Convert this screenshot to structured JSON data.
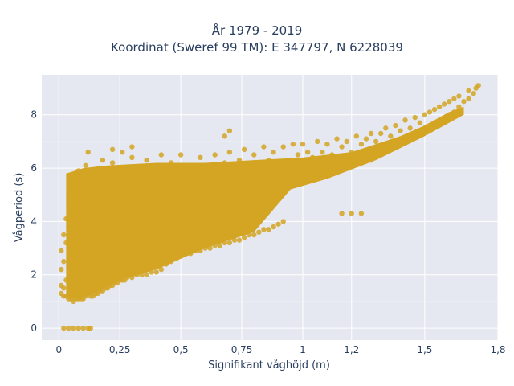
{
  "title": [
    "År 1979 - 2019",
    "Koordinat (Sweref 99 TM): E 347797, N 6228039"
  ],
  "xlabel": "Signifikant våghöjd (m)",
  "ylabel": "Vågperiod (s)",
  "colors": {
    "marker": "#d4a523",
    "plot_bg": "#e5e8f0",
    "grid": "#ffffff",
    "text": "#2a3f5f"
  },
  "chart_data": {
    "type": "scatter",
    "title": "År 1979 - 2019 / Koordinat (Sweref 99 TM): E 347797, N 6228039",
    "xlabel": "Signifikant våghöjd (m)",
    "ylabel": "Vågperiod (s)",
    "xlim": [
      -0.07,
      1.8
    ],
    "ylim": [
      -0.45,
      9.5
    ],
    "grid": true,
    "x_ticks": [
      {
        "value": 0,
        "label": "0"
      },
      {
        "value": 0.25,
        "label": "0,25"
      },
      {
        "value": 0.5,
        "label": "0,5"
      },
      {
        "value": 0.75,
        "label": "0,75"
      },
      {
        "value": 1,
        "label": "1"
      },
      {
        "value": 1.2,
        "label": "1,2"
      },
      {
        "value": 1.5,
        "label": "1,5"
      },
      {
        "value": 1.8,
        "label": "1,8"
      }
    ],
    "y_ticks": [
      {
        "value": 0,
        "label": "0"
      },
      {
        "value": 2,
        "label": "2"
      },
      {
        "value": 4,
        "label": "4"
      },
      {
        "value": 6,
        "label": "6"
      },
      {
        "value": 8,
        "label": "8"
      }
    ],
    "points": [
      [
        0.02,
        0
      ],
      [
        0.04,
        0
      ],
      [
        0.06,
        0
      ],
      [
        0.08,
        0
      ],
      [
        0.1,
        0
      ],
      [
        0.12,
        0
      ],
      [
        0.13,
        0
      ],
      [
        0.01,
        1.3
      ],
      [
        0.01,
        1.6
      ],
      [
        0.01,
        2.2
      ],
      [
        0.01,
        2.9
      ],
      [
        0.02,
        1.2
      ],
      [
        0.02,
        1.5
      ],
      [
        0.02,
        2.5
      ],
      [
        0.02,
        3.5
      ],
      [
        0.03,
        1.2
      ],
      [
        0.03,
        1.8
      ],
      [
        0.03,
        3.2
      ],
      [
        0.03,
        4.1
      ],
      [
        0.04,
        1.1
      ],
      [
        0.04,
        2.3
      ],
      [
        0.04,
        3.8
      ],
      [
        0.04,
        4.8
      ],
      [
        0.05,
        1.1
      ],
      [
        0.05,
        2.0
      ],
      [
        0.05,
        3.0
      ],
      [
        0.05,
        4.5
      ],
      [
        0.06,
        1.0
      ],
      [
        0.06,
        2.6
      ],
      [
        0.06,
        3.6
      ],
      [
        0.06,
        5.2
      ],
      [
        0.07,
        1.1
      ],
      [
        0.07,
        1.9
      ],
      [
        0.07,
        3.3
      ],
      [
        0.07,
        5.6
      ],
      [
        0.08,
        1.1
      ],
      [
        0.08,
        2.4
      ],
      [
        0.08,
        4.0
      ],
      [
        0.08,
        5.9
      ],
      [
        0.09,
        1.1
      ],
      [
        0.09,
        2.1
      ],
      [
        0.09,
        3.4
      ],
      [
        0.09,
        4.7
      ],
      [
        0.1,
        1.1
      ],
      [
        0.1,
        2.8
      ],
      [
        0.1,
        4.3
      ],
      [
        0.1,
        5.7
      ],
      [
        0.11,
        6.1
      ],
      [
        0.11,
        1.2
      ],
      [
        0.12,
        2.2
      ],
      [
        0.12,
        3.9
      ],
      [
        0.12,
        5.1
      ],
      [
        0.13,
        1.2
      ],
      [
        0.13,
        3.0
      ],
      [
        0.13,
        4.6
      ],
      [
        0.14,
        1.2
      ],
      [
        0.14,
        2.5
      ],
      [
        0.14,
        3.7
      ],
      [
        0.14,
        5.4
      ],
      [
        0.15,
        1.3
      ],
      [
        0.15,
        2.0
      ],
      [
        0.15,
        4.2
      ],
      [
        0.15,
        5.8
      ],
      [
        0.16,
        1.3
      ],
      [
        0.16,
        3.1
      ],
      [
        0.16,
        6.0
      ],
      [
        0.17,
        1.4
      ],
      [
        0.17,
        2.6
      ],
      [
        0.17,
        4.4
      ],
      [
        0.17,
        5.3
      ],
      [
        0.18,
        1.4
      ],
      [
        0.18,
        3.5
      ],
      [
        0.18,
        6.3
      ],
      [
        0.19,
        1.5
      ],
      [
        0.19,
        2.3
      ],
      [
        0.19,
        4.8
      ],
      [
        0.2,
        1.5
      ],
      [
        0.2,
        3.2
      ],
      [
        0.2,
        5.5
      ],
      [
        0.21,
        1.6
      ],
      [
        0.21,
        2.9
      ],
      [
        0.21,
        4.1
      ],
      [
        0.22,
        1.6
      ],
      [
        0.22,
        3.8
      ],
      [
        0.22,
        6.2
      ],
      [
        0.23,
        1.7
      ],
      [
        0.23,
        2.4
      ],
      [
        0.23,
        5.0
      ],
      [
        0.24,
        1.7
      ],
      [
        0.24,
        3.3
      ],
      [
        0.24,
        4.6
      ],
      [
        0.25,
        1.8
      ],
      [
        0.25,
        2.8
      ],
      [
        0.25,
        5.7
      ],
      [
        0.26,
        1.8
      ],
      [
        0.26,
        3.6
      ],
      [
        0.26,
        6.6
      ],
      [
        0.27,
        1.8
      ],
      [
        0.27,
        4.2
      ],
      [
        0.28,
        1.9
      ],
      [
        0.28,
        2.7
      ],
      [
        0.28,
        5.2
      ],
      [
        0.3,
        1.9
      ],
      [
        0.3,
        3.4
      ],
      [
        0.3,
        4.5
      ],
      [
        0.3,
        6.4
      ],
      [
        0.32,
        2.0
      ],
      [
        0.32,
        3.0
      ],
      [
        0.32,
        5.9
      ],
      [
        0.34,
        2.0
      ],
      [
        0.34,
        4.0
      ],
      [
        0.34,
        5.3
      ],
      [
        0.36,
        2.0
      ],
      [
        0.36,
        3.6
      ],
      [
        0.36,
        6.3
      ],
      [
        0.38,
        2.1
      ],
      [
        0.38,
        2.9
      ],
      [
        0.38,
        4.8
      ],
      [
        0.4,
        2.1
      ],
      [
        0.4,
        3.3
      ],
      [
        0.4,
        5.6
      ],
      [
        0.42,
        2.2
      ],
      [
        0.42,
        4.3
      ],
      [
        0.42,
        6.5
      ],
      [
        0.44,
        2.4
      ],
      [
        0.44,
        3.5
      ],
      [
        0.44,
        5.1
      ],
      [
        0.46,
        2.5
      ],
      [
        0.46,
        4.0
      ],
      [
        0.46,
        6.2
      ],
      [
        0.48,
        2.6
      ],
      [
        0.48,
        3.2
      ],
      [
        0.48,
        5.8
      ],
      [
        0.5,
        2.7
      ],
      [
        0.5,
        4.4
      ],
      [
        0.5,
        6.5
      ],
      [
        0.52,
        2.8
      ],
      [
        0.52,
        3.6
      ],
      [
        0.52,
        5.4
      ],
      [
        0.54,
        2.8
      ],
      [
        0.54,
        4.6
      ],
      [
        0.54,
        6.1
      ],
      [
        0.56,
        2.9
      ],
      [
        0.56,
        3.9
      ],
      [
        0.56,
        5.7
      ],
      [
        0.58,
        2.9
      ],
      [
        0.58,
        4.9
      ],
      [
        0.58,
        6.4
      ],
      [
        0.6,
        3.0
      ],
      [
        0.6,
        4.0
      ],
      [
        0.6,
        5.3
      ],
      [
        0.62,
        3.0
      ],
      [
        0.62,
        4.5
      ],
      [
        0.62,
        6.0
      ],
      [
        0.64,
        3.1
      ],
      [
        0.64,
        5.0
      ],
      [
        0.64,
        6.5
      ],
      [
        0.66,
        3.1
      ],
      [
        0.66,
        4.2
      ],
      [
        0.66,
        5.6
      ],
      [
        0.68,
        3.2
      ],
      [
        0.68,
        4.7
      ],
      [
        0.68,
        6.2
      ],
      [
        0.7,
        3.2
      ],
      [
        0.7,
        5.2
      ],
      [
        0.7,
        6.6
      ],
      [
        0.72,
        3.3
      ],
      [
        0.72,
        4.4
      ],
      [
        0.72,
        5.8
      ],
      [
        0.74,
        3.3
      ],
      [
        0.74,
        4.9
      ],
      [
        0.74,
        6.3
      ],
      [
        0.76,
        3.4
      ],
      [
        0.76,
        5.4
      ],
      [
        0.76,
        6.7
      ],
      [
        0.78,
        3.5
      ],
      [
        0.78,
        4.6
      ],
      [
        0.78,
        5.9
      ],
      [
        0.8,
        3.5
      ],
      [
        0.8,
        5.1
      ],
      [
        0.8,
        6.5
      ],
      [
        0.82,
        3.6
      ],
      [
        0.82,
        4.8
      ],
      [
        0.82,
        6.1
      ],
      [
        0.84,
        3.7
      ],
      [
        0.84,
        5.3
      ],
      [
        0.84,
        6.8
      ],
      [
        0.86,
        3.7
      ],
      [
        0.86,
        5.0
      ],
      [
        0.86,
        6.3
      ],
      [
        0.88,
        3.8
      ],
      [
        0.88,
        5.5
      ],
      [
        0.88,
        6.6
      ],
      [
        0.9,
        3.9
      ],
      [
        0.9,
        5.2
      ],
      [
        0.9,
        6.0
      ],
      [
        0.92,
        4.0
      ],
      [
        0.92,
        5.7
      ],
      [
        0.92,
        6.8
      ],
      [
        0.94,
        5.4
      ],
      [
        0.94,
        6.3
      ],
      [
        0.96,
        5.6
      ],
      [
        0.96,
        6.9
      ],
      [
        0.98,
        5.8
      ],
      [
        0.98,
        6.5
      ],
      [
        1.0,
        5.5
      ],
      [
        1.0,
        6.2
      ],
      [
        1.0,
        6.9
      ],
      [
        1.02,
        5.9
      ],
      [
        1.02,
        6.6
      ],
      [
        1.04,
        5.7
      ],
      [
        1.04,
        6.4
      ],
      [
        1.06,
        6.0
      ],
      [
        1.06,
        7.0
      ],
      [
        1.08,
        5.8
      ],
      [
        1.08,
        6.6
      ],
      [
        1.1,
        6.1
      ],
      [
        1.1,
        6.9
      ],
      [
        1.12,
        5.9
      ],
      [
        1.12,
        6.5
      ],
      [
        1.14,
        6.2
      ],
      [
        1.14,
        7.1
      ],
      [
        1.16,
        6.0
      ],
      [
        1.16,
        6.8
      ],
      [
        1.18,
        6.3
      ],
      [
        1.18,
        7.0
      ],
      [
        1.2,
        6.1
      ],
      [
        1.2,
        6.6
      ],
      [
        1.22,
        6.4
      ],
      [
        1.22,
        7.2
      ],
      [
        1.24,
        6.2
      ],
      [
        1.24,
        6.9
      ],
      [
        1.26,
        6.5
      ],
      [
        1.26,
        7.1
      ],
      [
        1.28,
        6.3
      ],
      [
        1.28,
        7.3
      ],
      [
        1.3,
        6.6
      ],
      [
        1.3,
        7.0
      ],
      [
        1.32,
        6.5
      ],
      [
        1.32,
        7.3
      ],
      [
        1.34,
        6.7
      ],
      [
        1.34,
        7.5
      ],
      [
        1.36,
        6.8
      ],
      [
        1.36,
        7.2
      ],
      [
        1.38,
        6.9
      ],
      [
        1.38,
        7.6
      ],
      [
        1.4,
        7.0
      ],
      [
        1.4,
        7.4
      ],
      [
        1.42,
        7.1
      ],
      [
        1.42,
        7.8
      ],
      [
        1.44,
        7.2
      ],
      [
        1.44,
        7.5
      ],
      [
        1.46,
        7.3
      ],
      [
        1.46,
        7.9
      ],
      [
        1.48,
        7.4
      ],
      [
        1.48,
        7.7
      ],
      [
        1.5,
        7.5
      ],
      [
        1.5,
        8.0
      ],
      [
        1.52,
        7.6
      ],
      [
        1.52,
        8.1
      ],
      [
        1.54,
        7.7
      ],
      [
        1.54,
        8.2
      ],
      [
        1.56,
        7.8
      ],
      [
        1.56,
        8.3
      ],
      [
        1.58,
        7.9
      ],
      [
        1.58,
        8.4
      ],
      [
        1.6,
        8.0
      ],
      [
        1.6,
        8.5
      ],
      [
        1.62,
        8.1
      ],
      [
        1.62,
        8.6
      ],
      [
        1.64,
        8.3
      ],
      [
        1.64,
        8.7
      ],
      [
        1.66,
        8.5
      ],
      [
        1.68,
        8.6
      ],
      [
        1.68,
        8.9
      ],
      [
        1.7,
        8.8
      ],
      [
        1.71,
        9.0
      ],
      [
        1.72,
        9.1
      ],
      [
        0.7,
        7.4
      ],
      [
        0.68,
        7.2
      ],
      [
        1.16,
        4.3
      ],
      [
        1.2,
        4.3
      ],
      [
        1.24,
        4.3
      ],
      [
        0.3,
        6.8
      ],
      [
        0.22,
        6.7
      ],
      [
        0.12,
        6.6
      ]
    ]
  }
}
